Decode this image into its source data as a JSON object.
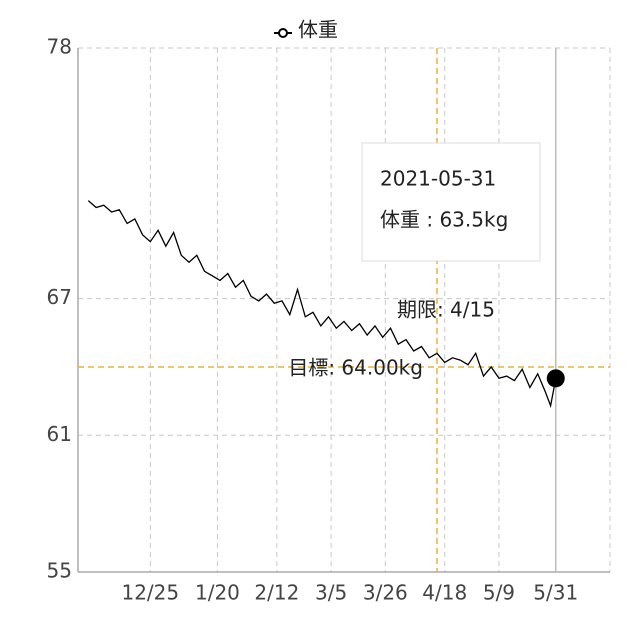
{
  "chart_data": {
    "type": "line",
    "series": [
      {
        "name": "体重",
        "color": "#000000",
        "x": [
          "12/1",
          "12/4",
          "12/7",
          "12/10",
          "12/13",
          "12/16",
          "12/19",
          "12/22",
          "12/25",
          "12/28",
          "12/31",
          "1/3",
          "1/6",
          "1/9",
          "1/12",
          "1/15",
          "1/18",
          "1/21",
          "1/24",
          "1/27",
          "1/30",
          "2/2",
          "2/5",
          "2/8",
          "2/11",
          "2/14",
          "2/17",
          "2/20",
          "2/23",
          "2/26",
          "3/1",
          "3/4",
          "3/7",
          "3/10",
          "3/13",
          "3/16",
          "3/19",
          "3/22",
          "3/25",
          "3/28",
          "3/31",
          "4/3",
          "4/6",
          "4/9",
          "4/12",
          "4/15",
          "4/18",
          "4/21",
          "4/24",
          "4/27",
          "4/30",
          "5/3",
          "5/6",
          "5/9",
          "5/12",
          "5/15",
          "5/18",
          "5/21",
          "5/24",
          "5/27",
          "5/29",
          "5/31"
        ],
        "values": [
          71.3,
          71.0,
          71.1,
          70.8,
          70.9,
          70.3,
          70.5,
          69.8,
          69.5,
          70.0,
          69.3,
          69.9,
          68.9,
          68.6,
          68.9,
          68.2,
          68.0,
          67.8,
          68.1,
          67.5,
          67.8,
          67.1,
          66.9,
          67.2,
          66.8,
          66.9,
          66.3,
          67.4,
          66.2,
          66.4,
          65.8,
          66.2,
          65.7,
          66.0,
          65.6,
          65.9,
          65.4,
          65.8,
          65.3,
          65.7,
          65.0,
          65.2,
          64.7,
          64.9,
          64.4,
          64.6,
          64.2,
          64.4,
          64.3,
          64.1,
          64.6,
          63.6,
          64.0,
          63.5,
          63.6,
          63.4,
          63.9,
          63.1,
          63.7,
          62.9,
          62.3,
          63.5
        ]
      }
    ],
    "xlim": [
      "11/27",
      "6/21"
    ],
    "xticks": [
      "12/25",
      "1/20",
      "2/12",
      "3/5",
      "3/26",
      "4/18",
      "5/9",
      "5/31"
    ],
    "ylim": [
      55,
      78
    ],
    "yticks": [
      55,
      61,
      67,
      78
    ],
    "grid": true,
    "target": {
      "value": 64,
      "label": "目標: 64.00kg"
    },
    "deadline": {
      "value": "4/15",
      "label": "期限: 4/15"
    },
    "reference_color": "#e8b33a",
    "tooltip": {
      "title": "2021-05-31",
      "label": "体重 : 63.5kg"
    }
  }
}
